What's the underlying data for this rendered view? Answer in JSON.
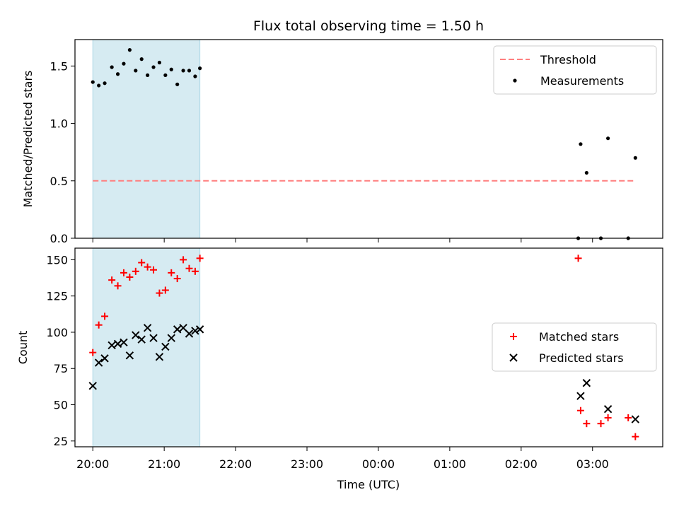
{
  "chart_data": {
    "title": "Flux total observing time = 1.50 h",
    "xlabel": "Time (UTC)",
    "x_unit": "hours (24h clock, axis spans evening to next morning)",
    "x_ticks": [
      "20:00",
      "21:00",
      "22:00",
      "23:00",
      "00:00",
      "01:00",
      "02:00",
      "03:00"
    ],
    "xlim": [
      "19:45",
      "03:59"
    ],
    "shaded_interval": {
      "start": "20:00",
      "end": "21:30",
      "color": "#add8e6"
    },
    "panels": [
      {
        "type": "scatter",
        "ylabel": "Matched/Predicted stars",
        "ylim": [
          0,
          1.73
        ],
        "yticks": [
          "0.0",
          "0.5",
          "1.0",
          "1.5"
        ],
        "threshold": {
          "name": "Threshold",
          "value": 0.5,
          "from": "20:00",
          "to": "03:36",
          "color": "#ff7f7f"
        },
        "legend": {
          "placement": "top-right",
          "entries": [
            "Threshold",
            "Measurements"
          ]
        },
        "series": [
          {
            "name": "Measurements",
            "color": "#000000",
            "marker": "dot",
            "points": [
              [
                "20:00",
                1.36
              ],
              [
                "20:05",
                1.33
              ],
              [
                "20:10",
                1.35
              ],
              [
                "20:16",
                1.49
              ],
              [
                "20:21",
                1.43
              ],
              [
                "20:26",
                1.52
              ],
              [
                "20:31",
                1.64
              ],
              [
                "20:36",
                1.46
              ],
              [
                "20:41",
                1.56
              ],
              [
                "20:46",
                1.42
              ],
              [
                "20:51",
                1.49
              ],
              [
                "20:56",
                1.53
              ],
              [
                "21:01",
                1.42
              ],
              [
                "21:06",
                1.47
              ],
              [
                "21:11",
                1.34
              ],
              [
                "21:16",
                1.46
              ],
              [
                "21:21",
                1.46
              ],
              [
                "21:26",
                1.41
              ],
              [
                "21:30",
                1.48
              ],
              [
                "02:48",
                0.0
              ],
              [
                "02:50",
                0.82
              ],
              [
                "02:55",
                0.57
              ],
              [
                "03:07",
                0.0
              ],
              [
                "03:13",
                0.87
              ],
              [
                "03:30",
                0.0
              ],
              [
                "03:36",
                0.7
              ]
            ]
          }
        ]
      },
      {
        "type": "scatter",
        "ylabel": "Count",
        "ylim": [
          21,
          158
        ],
        "yticks": [
          "25",
          "50",
          "75",
          "100",
          "125",
          "150"
        ],
        "legend": {
          "placement": "center-right",
          "entries": [
            "Matched stars",
            "Predicted stars"
          ]
        },
        "series": [
          {
            "name": "Matched stars",
            "color": "#ff0000",
            "marker": "plus",
            "points": [
              [
                "20:00",
                86
              ],
              [
                "20:05",
                105
              ],
              [
                "20:10",
                111
              ],
              [
                "20:16",
                136
              ],
              [
                "20:21",
                132
              ],
              [
                "20:26",
                141
              ],
              [
                "20:31",
                138
              ],
              [
                "20:36",
                142
              ],
              [
                "20:41",
                148
              ],
              [
                "20:46",
                145
              ],
              [
                "20:51",
                143
              ],
              [
                "20:56",
                127
              ],
              [
                "21:01",
                129
              ],
              [
                "21:06",
                141
              ],
              [
                "21:11",
                137
              ],
              [
                "21:16",
                150
              ],
              [
                "21:21",
                144
              ],
              [
                "21:26",
                142
              ],
              [
                "21:30",
                151
              ],
              [
                "02:48",
                151
              ],
              [
                "02:50",
                46
              ],
              [
                "02:55",
                37
              ],
              [
                "03:07",
                37
              ],
              [
                "03:13",
                41
              ],
              [
                "03:30",
                41
              ],
              [
                "03:36",
                28
              ]
            ]
          },
          {
            "name": "Predicted stars",
            "color": "#000000",
            "marker": "x",
            "points": [
              [
                "20:00",
                63
              ],
              [
                "20:05",
                79
              ],
              [
                "20:10",
                82
              ],
              [
                "20:16",
                91
              ],
              [
                "20:21",
                92
              ],
              [
                "20:26",
                93
              ],
              [
                "20:31",
                84
              ],
              [
                "20:36",
                98
              ],
              [
                "20:41",
                95
              ],
              [
                "20:46",
                103
              ],
              [
                "20:51",
                96
              ],
              [
                "20:56",
                83
              ],
              [
                "21:01",
                90
              ],
              [
                "21:06",
                96
              ],
              [
                "21:11",
                102
              ],
              [
                "21:16",
                103
              ],
              [
                "21:21",
                99
              ],
              [
                "21:26",
                101
              ],
              [
                "21:30",
                102
              ],
              [
                "02:50",
                56
              ],
              [
                "02:55",
                65
              ],
              [
                "03:13",
                47
              ],
              [
                "03:36",
                40
              ]
            ]
          }
        ]
      }
    ]
  }
}
